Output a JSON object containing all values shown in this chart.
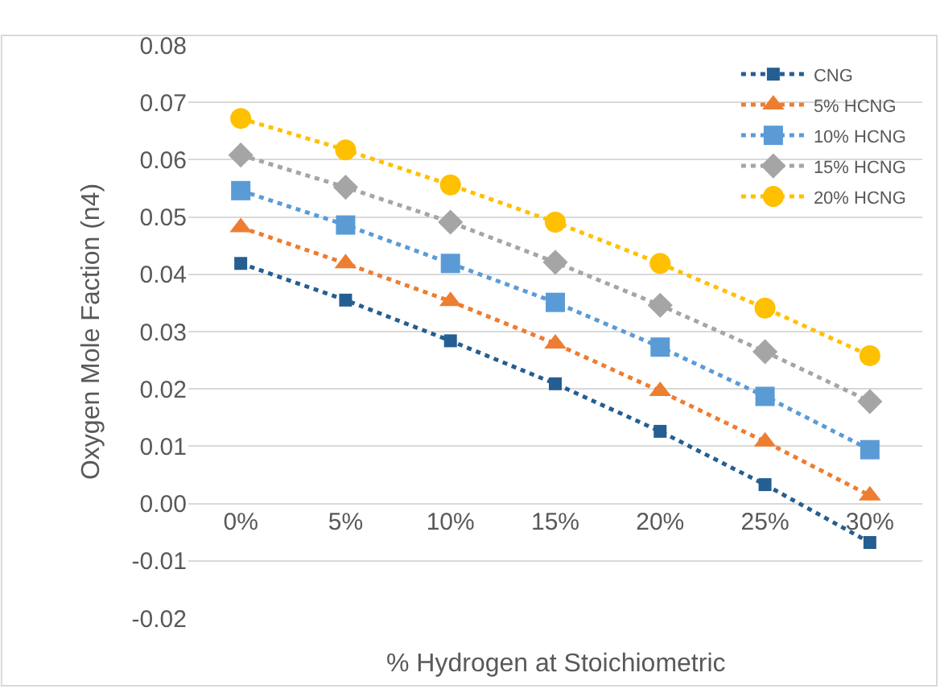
{
  "chart_data": {
    "type": "line",
    "xlabel": "% Hydrogen at Stoichiometric",
    "ylabel": "Oxygen Mole Faction (n4)",
    "categories": [
      "0%",
      "5%",
      "10%",
      "15%",
      "20%",
      "25%",
      "30%"
    ],
    "ylim": [
      -0.02,
      0.08
    ],
    "yticks": [
      {
        "value": -0.02,
        "label": "-0.02"
      },
      {
        "value": -0.01,
        "label": "-0.01"
      },
      {
        "value": 0,
        "label": "0.00"
      },
      {
        "value": 0.01,
        "label": "0.01"
      },
      {
        "value": 0.02,
        "label": "0.02"
      },
      {
        "value": 0.03,
        "label": "0.03"
      },
      {
        "value": 0.04,
        "label": "0.04"
      },
      {
        "value": 0.05,
        "label": "0.05"
      },
      {
        "value": 0.06,
        "label": "0.06"
      },
      {
        "value": 0.07,
        "label": "0.07"
      },
      {
        "value": 0.08,
        "label": "0.08"
      }
    ],
    "grid": "y",
    "legend": "top right",
    "line_style": "dotted",
    "series": [
      {
        "name": "CNG",
        "color": "#255e91",
        "marker": "square",
        "values": [
          0.0419,
          0.0355,
          0.0284,
          0.0209,
          0.0126,
          0.0033,
          -0.0068
        ]
      },
      {
        "name": "5% HCNG",
        "color": "#ed7d31",
        "marker": "triangle",
        "values": [
          0.0482,
          0.0419,
          0.0353,
          0.0279,
          0.0196,
          0.0108,
          0.0014
        ]
      },
      {
        "name": "10% HCNG",
        "color": "#5b9bd5",
        "marker": "square",
        "values": [
          0.0546,
          0.0486,
          0.0419,
          0.0351,
          0.0273,
          0.0187,
          0.0094
        ]
      },
      {
        "name": "15% HCNG",
        "color": "#a5a5a5",
        "marker": "diamond",
        "values": [
          0.0608,
          0.0552,
          0.0491,
          0.0421,
          0.0346,
          0.0265,
          0.0178
        ]
      },
      {
        "name": "20% HCNG",
        "color": "#ffc000",
        "marker": "circle",
        "values": [
          0.0672,
          0.0617,
          0.0556,
          0.0491,
          0.0419,
          0.0341,
          0.0258
        ]
      }
    ]
  }
}
